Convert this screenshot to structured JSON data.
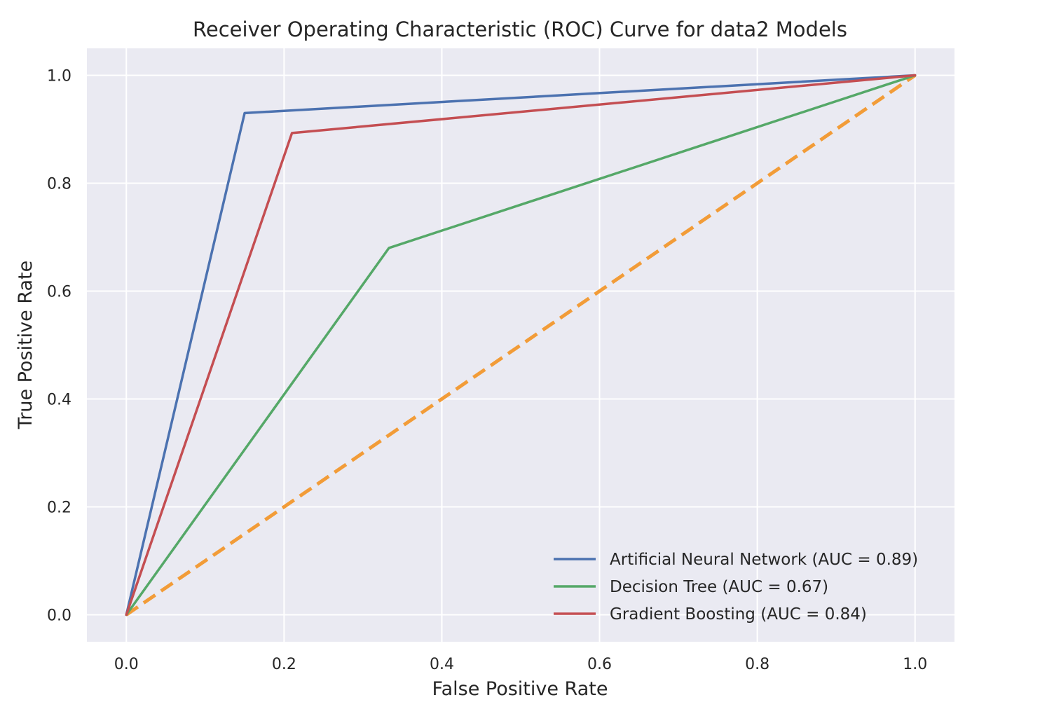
{
  "chart_data": {
    "type": "line",
    "title": "Receiver Operating Characteristic (ROC) Curve for data2 Models",
    "xlabel": "False Positive Rate",
    "ylabel": "True Positive Rate",
    "xlim": [
      -0.05,
      1.05
    ],
    "ylim": [
      -0.05,
      1.05
    ],
    "xticks": [
      0.0,
      0.2,
      0.4,
      0.6,
      0.8,
      1.0
    ],
    "yticks": [
      0.0,
      0.2,
      0.4,
      0.6,
      0.8,
      1.0
    ],
    "xtick_labels": [
      "0.0",
      "0.2",
      "0.4",
      "0.6",
      "0.8",
      "1.0"
    ],
    "ytick_labels": [
      "0.0",
      "0.2",
      "0.4",
      "0.6",
      "0.8",
      "1.0"
    ],
    "grid": true,
    "legend_position": "lower-right",
    "background_color": "#eaeaf2",
    "series": [
      {
        "name": "Artificial Neural Network (AUC = 0.89)",
        "color": "#4c72b0",
        "style": "solid",
        "x": [
          0.0,
          0.15,
          1.0
        ],
        "y": [
          0.0,
          0.93,
          1.0
        ]
      },
      {
        "name": "Decision Tree (AUC = 0.67)",
        "color": "#55a868",
        "style": "solid",
        "x": [
          0.0,
          0.333,
          1.0
        ],
        "y": [
          0.0,
          0.68,
          1.0
        ]
      },
      {
        "name": "Gradient Boosting (AUC = 0.84)",
        "color": "#c44e52",
        "style": "solid",
        "x": [
          0.0,
          0.21,
          1.0
        ],
        "y": [
          0.0,
          0.893,
          1.0
        ]
      },
      {
        "name": "",
        "color": "#f29c38",
        "style": "dashed",
        "legend": false,
        "x": [
          0.0,
          1.0
        ],
        "y": [
          0.0,
          1.0
        ]
      }
    ]
  }
}
